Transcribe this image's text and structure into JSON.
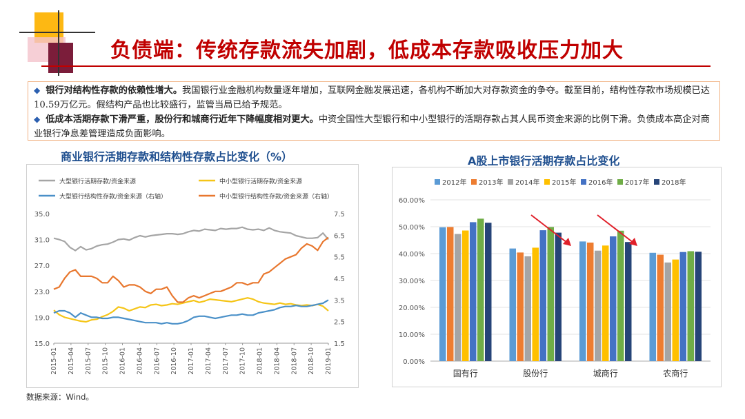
{
  "title": "负债端：传统存款流失加剧，低成本存款吸收压力加大",
  "bullets": [
    {
      "lead": "银行对结构性存款的依赖性增大。",
      "text": "我国银行业金融机构数量逐年增加，互联网金融发展迅速，各机构不断加大对存款资金的争夺。截至目前，结构性存款市场规模已达10.59万亿元。假结构产品也比较盛行，监管当局已给予规范。"
    },
    {
      "lead": "低成本活期存款下滑严重，股份行和城商行近年下降幅度相对更大。",
      "text": "中资全国性大型银行和中小型银行的活期存款占其人民币资金来源的比例下滑。负债成本高企对商业银行净息差管理造成负面影响。"
    }
  ],
  "source": "数据来源：Wind。",
  "colors": {
    "title": "#c00000",
    "accent": "#1f4f8f"
  },
  "chart_data": [
    {
      "type": "line",
      "title": "商业银行活期存款和结构性存款占比变化（%）",
      "left_axis": {
        "ylim": [
          15.0,
          35.0
        ],
        "ticks": [
          "35.0",
          "31.0",
          "27.0",
          "23.0",
          "19.0",
          "15.0"
        ]
      },
      "right_axis": {
        "ylim": [
          1.5,
          7.5
        ],
        "ticks": [
          "7.5",
          "6.5",
          "5.5",
          "4.5",
          "3.5",
          "2.5",
          "1.5"
        ]
      },
      "x_ticks": [
        "2015-01",
        "2015-04",
        "2015-07",
        "2015-10",
        "2016-01",
        "2016-04",
        "2016-07",
        "2016-10",
        "2017-01",
        "2017-04",
        "2017-07",
        "2017-10",
        "2018-01",
        "2018-04",
        "2018-07",
        "2018-10",
        "2019-01"
      ],
      "series": [
        {
          "name": "大型银行活期存款/资金来源",
          "axis": "left",
          "color": "#a5a5a5",
          "values": [
            31.2,
            31.0,
            30.7,
            29.8,
            29.3,
            29.9,
            29.4,
            29.6,
            30.0,
            30.2,
            30.3,
            30.6,
            31.0,
            31.1,
            30.9,
            31.3,
            31.6,
            31.4,
            31.6,
            31.7,
            31.8,
            31.9,
            31.9,
            31.8,
            31.9,
            32.2,
            32.4,
            32.3,
            32.6,
            32.5,
            32.4,
            32.7,
            32.6,
            32.7,
            32.7,
            32.9,
            32.6,
            32.5,
            32.6,
            32.4,
            32.8,
            32.4,
            32.2,
            32.1,
            32.0,
            31.6,
            31.4,
            31.2,
            31.2,
            31.3,
            32.0,
            31.0
          ]
        },
        {
          "name": "中小型银行活期存款/资金来源",
          "axis": "left",
          "color": "#f5c518",
          "values": [
            20.1,
            19.4,
            19.0,
            18.8,
            18.6,
            18.4,
            18.3,
            18.6,
            18.7,
            19.1,
            19.4,
            19.9,
            20.6,
            20.4,
            20.0,
            20.3,
            20.6,
            20.5,
            20.9,
            21.0,
            20.8,
            20.9,
            21.1,
            21.0,
            21.2,
            21.4,
            21.6,
            21.3,
            21.5,
            21.8,
            21.7,
            21.6,
            21.5,
            21.4,
            21.6,
            21.8,
            22.0,
            21.8,
            21.4,
            21.2,
            21.1,
            21.0,
            21.2,
            21.0,
            21.1,
            20.9,
            20.8,
            20.9,
            20.8,
            21.0,
            20.7,
            20.0
          ]
        },
        {
          "name": "大型银行结构性存款/资金来源（右轴）",
          "axis": "right",
          "color": "#4a90c8",
          "values": [
            2.9,
            3.0,
            3.0,
            2.9,
            2.7,
            2.9,
            2.8,
            2.7,
            2.7,
            2.65,
            2.65,
            2.7,
            2.7,
            2.65,
            2.6,
            2.55,
            2.5,
            2.45,
            2.45,
            2.45,
            2.4,
            2.45,
            2.4,
            2.4,
            2.45,
            2.55,
            2.7,
            2.75,
            2.75,
            2.7,
            2.65,
            2.7,
            2.75,
            2.8,
            2.8,
            2.85,
            2.8,
            2.8,
            2.9,
            2.95,
            3.0,
            3.05,
            3.15,
            3.2,
            3.2,
            3.25,
            3.2,
            3.2,
            3.25,
            3.3,
            3.35,
            3.5
          ]
        },
        {
          "name": "中小型银行结构性存款/资金来源（右轴）",
          "axis": "right",
          "color": "#e8772e",
          "values": [
            4.0,
            4.1,
            4.5,
            4.8,
            4.9,
            4.6,
            4.6,
            4.6,
            4.5,
            4.3,
            4.3,
            4.6,
            4.4,
            4.1,
            4.2,
            4.2,
            4.1,
            3.9,
            3.8,
            4.0,
            4.0,
            4.1,
            3.7,
            3.4,
            3.4,
            3.6,
            3.7,
            3.6,
            3.7,
            3.8,
            3.9,
            3.9,
            4.0,
            4.1,
            4.3,
            4.3,
            4.2,
            4.3,
            4.3,
            4.7,
            4.8,
            5.0,
            5.2,
            5.4,
            5.5,
            5.6,
            5.9,
            6.1,
            6.0,
            5.8,
            6.2,
            6.4
          ]
        }
      ]
    },
    {
      "type": "bar",
      "title": "A股上市银行活期存款占比变化",
      "categories": [
        "国有行",
        "股份行",
        "城商行",
        "农商行"
      ],
      "ylim": [
        0,
        60
      ],
      "y_ticks": [
        "60.00%",
        "50.00%",
        "40.00%",
        "30.00%",
        "20.00%",
        "10.00%",
        "0.00%"
      ],
      "series": [
        {
          "name": "2012年",
          "color": "#5b9bd5",
          "values": [
            49.8,
            41.9,
            44.5,
            40.3
          ]
        },
        {
          "name": "2013年",
          "color": "#ed7d31",
          "values": [
            49.9,
            40.4,
            44.1,
            39.6
          ]
        },
        {
          "name": "2014年",
          "color": "#a5a5a5",
          "values": [
            47.3,
            39.0,
            41.1,
            36.7
          ]
        },
        {
          "name": "2015年",
          "color": "#ffc000",
          "values": [
            48.6,
            42.2,
            43.0,
            37.8
          ]
        },
        {
          "name": "2016年",
          "color": "#4472c4",
          "values": [
            51.7,
            48.7,
            46.4,
            40.6
          ]
        },
        {
          "name": "2017年",
          "color": "#70ad47",
          "values": [
            53.0,
            49.9,
            48.5,
            40.9
          ]
        },
        {
          "name": "2018年",
          "color": "#264478",
          "values": [
            51.5,
            47.8,
            44.3,
            40.7
          ]
        }
      ]
    }
  ]
}
